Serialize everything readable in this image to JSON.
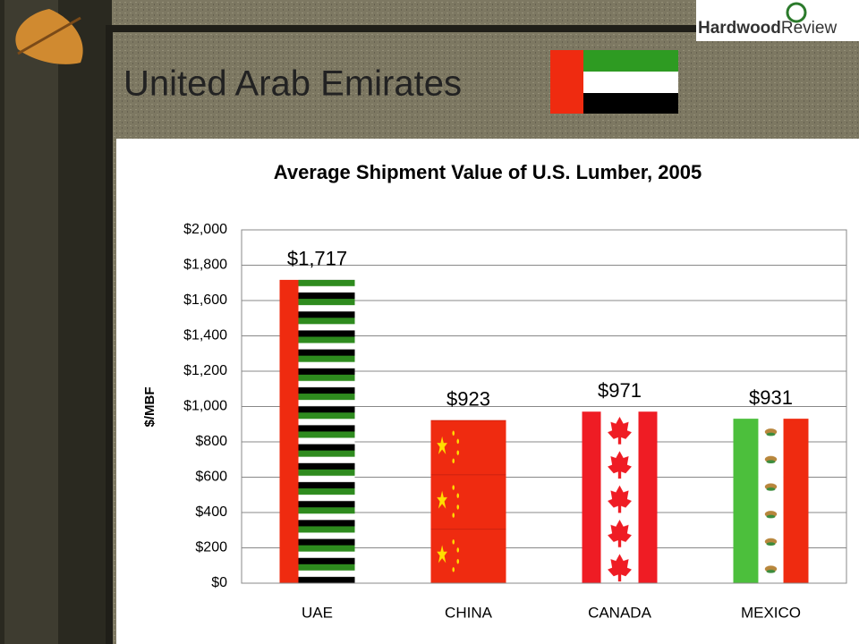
{
  "slide": {
    "title": "United Arab Emirates",
    "logo": {
      "first": "Hardwood",
      "second": "Review"
    }
  },
  "chart_data": {
    "type": "bar",
    "title": "Average Shipment Value of U.S. Lumber, 2005",
    "y_label": "$/MBF",
    "categories": [
      "UAE",
      "CHINA",
      "CANADA",
      "MEXICO"
    ],
    "values": [
      1717,
      923,
      971,
      931
    ],
    "value_labels": [
      "$1,717",
      "$923",
      "$971",
      "$931"
    ],
    "ylim": [
      0,
      2000
    ],
    "yticks": [
      {
        "value": 0,
        "label": "$0"
      },
      {
        "value": 200,
        "label": "$200"
      },
      {
        "value": 400,
        "label": "$400"
      },
      {
        "value": 600,
        "label": "$600"
      },
      {
        "value": 800,
        "label": "$800"
      },
      {
        "value": 1000,
        "label": "$1,000"
      },
      {
        "value": 1200,
        "label": "$1,200"
      },
      {
        "value": 1400,
        "label": "$1,400"
      },
      {
        "value": 1600,
        "label": "$1,600"
      },
      {
        "value": 1800,
        "label": "$1,800"
      },
      {
        "value": 2000,
        "label": "$2,000"
      }
    ],
    "grid": true
  }
}
